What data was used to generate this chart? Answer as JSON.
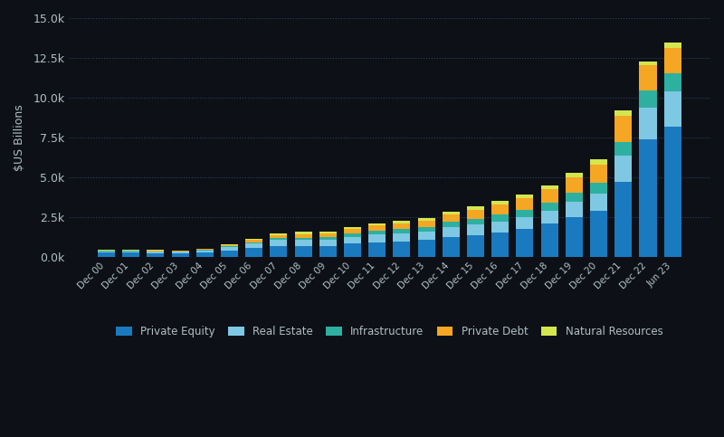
{
  "categories": [
    "Dec 00",
    "Dec 01",
    "Dec 02",
    "Dec 03",
    "Dec 04",
    "Dec 05",
    "Dec 06",
    "Dec 07",
    "Dec 08",
    "Dec 09",
    "Dec 10",
    "Dec 11",
    "Dec 12",
    "Dec 13",
    "Dec 14",
    "Dec 15",
    "Dec 16",
    "Dec 17",
    "Dec 18",
    "Dec 19",
    "Dec 20",
    "Dec 21",
    "Dec 22",
    "Jun 23"
  ],
  "private_equity": [
    290,
    280,
    270,
    260,
    300,
    420,
    560,
    700,
    680,
    700,
    840,
    900,
    1000,
    1080,
    1280,
    1380,
    1520,
    1750,
    2100,
    2500,
    2900,
    4700,
    7400,
    8200
  ],
  "real_estate": [
    90,
    95,
    95,
    85,
    130,
    200,
    290,
    380,
    420,
    410,
    440,
    510,
    510,
    530,
    590,
    660,
    720,
    760,
    810,
    960,
    1100,
    1650,
    2000,
    2200
  ],
  "infrastructure": [
    15,
    15,
    15,
    15,
    25,
    50,
    75,
    110,
    130,
    160,
    200,
    240,
    260,
    290,
    340,
    380,
    420,
    480,
    530,
    580,
    680,
    900,
    1050,
    1150
  ],
  "private_debt": [
    40,
    50,
    50,
    50,
    60,
    90,
    150,
    185,
    230,
    230,
    270,
    340,
    360,
    400,
    480,
    560,
    670,
    730,
    820,
    950,
    1100,
    1600,
    1600,
    1550
  ],
  "natural_resources": [
    25,
    25,
    25,
    25,
    35,
    65,
    90,
    115,
    125,
    115,
    115,
    125,
    135,
    145,
    170,
    190,
    215,
    230,
    255,
    300,
    345,
    350,
    250,
    350
  ],
  "colors": {
    "private_equity": "#1a7abf",
    "real_estate": "#7ec8e3",
    "infrastructure": "#2db0a0",
    "private_debt": "#f5a623",
    "natural_resources": "#d4e64e"
  },
  "ylabel": "$US Billions",
  "ylim": [
    0,
    15000
  ],
  "yticks": [
    0,
    2500,
    5000,
    7500,
    10000,
    12500,
    15000
  ],
  "ytick_labels": [
    "0.0k",
    "2.5k",
    "5.0k",
    "7.5k",
    "10.0k",
    "12.5k",
    "15.0k"
  ],
  "background_color": "#0d1117",
  "grid_color": "#334466",
  "text_color": "#b0bec5",
  "legend_labels": [
    "Private Equity",
    "Real Estate",
    "Infrastructure",
    "Private Debt",
    "Natural Resources"
  ],
  "bar_width": 0.7
}
